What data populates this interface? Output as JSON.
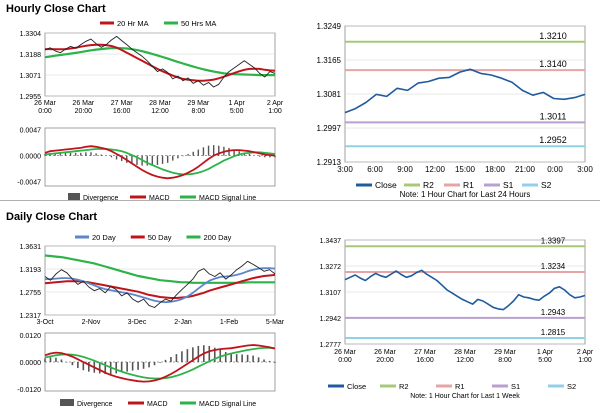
{
  "colors": {
    "price": "#1f5b9e",
    "ma20": "#c0141b",
    "ma50": "#2db34a",
    "ma200": "#2db34a",
    "daily_ma20": "#5b86c8",
    "macd": "#c0141b",
    "signal": "#2db34a",
    "divergence": "#555555",
    "r2": "#a8c878",
    "r1": "#e8a4a4",
    "s1": "#b8a0d0",
    "s2": "#90d0e8",
    "grid": "#d0d0d0"
  },
  "sections": {
    "hourly_title": "Hourly Close Chart",
    "daily_title": "Daily Close Chart"
  },
  "chart_data": [
    {
      "id": "hourly-price",
      "type": "line",
      "x_labels": [
        "26 Mar\n0:00",
        "26 Mar\n20:00",
        "27 Mar\n16:00",
        "28 Mar\n12:00",
        "29 Mar\n8:00",
        "1 Apr\n5:00",
        "2 Apr\n1:00"
      ],
      "y_ticks": [
        "1.3304",
        "1.3188",
        "1.3071",
        "1.2955"
      ],
      "ylim": [
        1.2955,
        1.3304
      ],
      "legend": [
        "20 Hr MA",
        "50 Hrs MA"
      ],
      "series": [
        {
          "role": "price",
          "values": [
            1.321,
            1.3222,
            1.3205,
            1.3195,
            1.3215,
            1.323,
            1.322,
            1.324,
            1.3258,
            1.327,
            1.3245,
            1.3225,
            1.324,
            1.3265,
            1.3285,
            1.3262,
            1.324,
            1.3215,
            1.3195,
            1.3175,
            1.315,
            1.312,
            1.309,
            1.3105,
            1.3085,
            1.305,
            1.3065,
            1.304,
            1.3055,
            1.3025,
            1.304,
            1.3015,
            1.303,
            1.3005,
            1.302,
            1.306,
            1.309,
            1.311,
            1.313,
            1.315,
            1.313,
            1.311,
            1.308,
            1.306,
            1.309,
            1.308
          ]
        },
        {
          "name": "20 Hr MA",
          "values": [
            1.3215,
            1.3215,
            1.3214,
            1.3214,
            1.3215,
            1.3218,
            1.3222,
            1.3228,
            1.3233,
            1.3237,
            1.3239,
            1.3239,
            1.3237,
            1.3232,
            1.3223,
            1.321,
            1.3195,
            1.318,
            1.3165,
            1.315,
            1.3135,
            1.312,
            1.3105,
            1.3092,
            1.308,
            1.3068,
            1.3058,
            1.305,
            1.3045,
            1.3042,
            1.304,
            1.304,
            1.3042,
            1.3046,
            1.3053,
            1.3062,
            1.3072,
            1.3082,
            1.3092,
            1.31,
            1.3105,
            1.3106,
            1.3105,
            1.31,
            1.3097,
            1.3095
          ]
        },
        {
          "name": "50 Hrs MA",
          "values": [
            1.317,
            1.3174,
            1.3178,
            1.3182,
            1.3186,
            1.319,
            1.3194,
            1.3198,
            1.3203,
            1.3208,
            1.3212,
            1.3215,
            1.3218,
            1.322,
            1.3221,
            1.322,
            1.3218,
            1.3214,
            1.3209,
            1.3203,
            1.3196,
            1.3188,
            1.318,
            1.3171,
            1.3162,
            1.3153,
            1.3144,
            1.3135,
            1.3126,
            1.3118,
            1.311,
            1.3103,
            1.3096,
            1.309,
            1.3085,
            1.3081,
            1.3078,
            1.3076,
            1.3075,
            1.3074,
            1.3073,
            1.3072,
            1.3071,
            1.3071,
            1.3071,
            1.3071
          ]
        }
      ]
    },
    {
      "id": "hourly-macd",
      "type": "line",
      "y_ticks": [
        "0.0047",
        "0.0000",
        "-0.0047"
      ],
      "ylim": [
        -0.0055,
        0.005
      ],
      "legend": [
        "Divergence",
        "MACD",
        "MACD Signal Line"
      ],
      "series": [
        {
          "name": "MACD",
          "values": [
            0.0005,
            0.0008,
            0.0009,
            0.001,
            0.0011,
            0.0012,
            0.0013,
            0.0014,
            0.0016,
            0.0017,
            0.0016,
            0.0014,
            0.0012,
            0.0008,
            0.0003,
            -0.0002,
            -0.0008,
            -0.0014,
            -0.002,
            -0.0026,
            -0.0031,
            -0.0035,
            -0.0038,
            -0.004,
            -0.0041,
            -0.004,
            -0.0038,
            -0.0035,
            -0.0031,
            -0.0026,
            -0.002,
            -0.0013,
            -0.0006,
            0.0,
            0.0004,
            0.0007,
            0.0009,
            0.001,
            0.001,
            0.0009,
            0.0008,
            0.0006,
            0.0004,
            0.0002,
            0.0001,
            0.0
          ]
        },
        {
          "name": "MACD Signal Line",
          "values": [
            0.0002,
            0.0003,
            0.0004,
            0.0005,
            0.0006,
            0.0007,
            0.0008,
            0.0009,
            0.001,
            0.0011,
            0.0012,
            0.0012,
            0.0012,
            0.0011,
            0.001,
            0.0008,
            0.0005,
            0.0001,
            -0.0003,
            -0.0008,
            -0.0013,
            -0.0017,
            -0.0021,
            -0.0025,
            -0.0028,
            -0.0031,
            -0.0033,
            -0.0034,
            -0.0034,
            -0.0033,
            -0.0031,
            -0.0028,
            -0.0024,
            -0.0019,
            -0.0014,
            -0.0009,
            -0.0005,
            -0.0001,
            0.0002,
            0.0004,
            0.0005,
            0.0006,
            0.0006,
            0.0005,
            0.0004,
            0.0003
          ]
        }
      ]
    },
    {
      "id": "hourly-pivot",
      "type": "line",
      "x_labels": [
        "3:00",
        "6:00",
        "9:00",
        "12:00",
        "15:00",
        "18:00",
        "21:00",
        "0:00",
        "3:00"
      ],
      "y_ticks": [
        "1.3249",
        "1.3165",
        "1.3081",
        "1.2997",
        "1.2913"
      ],
      "ylim": [
        1.2913,
        1.3249
      ],
      "levels": {
        "R2": 1.321,
        "R1": 1.314,
        "S1": 1.3011,
        "S2": 1.2952
      },
      "level_labels": {
        "R2": "1.3210",
        "R1": "1.3140",
        "S1": "1.3011",
        "S2": "1.2952"
      },
      "legend": [
        "Close",
        "R2",
        "R1",
        "S1",
        "S2"
      ],
      "note": "Note: 1 Hour Chart for Last 24 Hours",
      "series": [
        {
          "name": "Close",
          "values": [
            1.3035,
            1.3045,
            1.306,
            1.308,
            1.3075,
            1.3095,
            1.309,
            1.3108,
            1.3112,
            1.312,
            1.3122,
            1.3135,
            1.3142,
            1.3132,
            1.3128,
            1.312,
            1.311,
            1.309,
            1.3078,
            1.3085,
            1.307,
            1.3068,
            1.3072,
            1.308
          ]
        }
      ]
    },
    {
      "id": "daily-price",
      "type": "line",
      "x_labels": [
        "3-Oct",
        "2-Nov",
        "3-Dec",
        "2-Jan",
        "1-Feb",
        "5-Mar"
      ],
      "y_ticks": [
        "1.3631",
        "1.3193",
        "1.2755",
        "1.2317"
      ],
      "ylim": [
        1.2317,
        1.3631
      ],
      "legend": [
        "20 Day",
        "50 Day",
        "200 Day"
      ],
      "series": [
        {
          "role": "price",
          "values": [
            1.305,
            1.298,
            1.31,
            1.318,
            1.312,
            1.3,
            1.29,
            1.296,
            1.285,
            1.278,
            1.282,
            1.274,
            1.286,
            1.28,
            1.268,
            1.274,
            1.262,
            1.256,
            1.262,
            1.25,
            1.246,
            1.255,
            1.262,
            1.258,
            1.27,
            1.28,
            1.29,
            1.3,
            1.315,
            1.32,
            1.31,
            1.305,
            1.312,
            1.3,
            1.308,
            1.318,
            1.325,
            1.334,
            1.328,
            1.322,
            1.315,
            1.318,
            1.31
          ]
        },
        {
          "name": "20 Day",
          "values": [
            1.3,
            1.3,
            1.301,
            1.302,
            1.302,
            1.301,
            1.299,
            1.296,
            1.292,
            1.288,
            1.284,
            1.281,
            1.279,
            1.277,
            1.275,
            1.273,
            1.271,
            1.268,
            1.265,
            1.262,
            1.259,
            1.257,
            1.256,
            1.257,
            1.259,
            1.262,
            1.267,
            1.274,
            1.282,
            1.29,
            1.297,
            1.301,
            1.304,
            1.305,
            1.306,
            1.308,
            1.311,
            1.315,
            1.318,
            1.32,
            1.321,
            1.321,
            1.32
          ]
        },
        {
          "name": "50 Day",
          "values": [
            1.292,
            1.293,
            1.294,
            1.295,
            1.296,
            1.296,
            1.296,
            1.295,
            1.294,
            1.292,
            1.29,
            1.288,
            1.286,
            1.284,
            1.282,
            1.28,
            1.278,
            1.276,
            1.273,
            1.27,
            1.268,
            1.266,
            1.265,
            1.264,
            1.264,
            1.265,
            1.266,
            1.268,
            1.271,
            1.274,
            1.278,
            1.281,
            1.284,
            1.287,
            1.29,
            1.293,
            1.296,
            1.299,
            1.302,
            1.304,
            1.306,
            1.307,
            1.308
          ]
        },
        {
          "name": "200 Day",
          "values": [
            1.345,
            1.344,
            1.343,
            1.342,
            1.34,
            1.338,
            1.336,
            1.334,
            1.332,
            1.33,
            1.327,
            1.324,
            1.321,
            1.318,
            1.315,
            1.312,
            1.309,
            1.306,
            1.304,
            1.302,
            1.3,
            1.298,
            1.297,
            1.296,
            1.295,
            1.294,
            1.294,
            1.293,
            1.293,
            1.293,
            1.293,
            1.293,
            1.293,
            1.293,
            1.293,
            1.293,
            1.293,
            1.294,
            1.294,
            1.294,
            1.294,
            1.294,
            1.294
          ]
        }
      ]
    },
    {
      "id": "daily-macd",
      "type": "line",
      "y_ticks": [
        "0.0120",
        "0.0000",
        "-0.0120"
      ],
      "ylim": [
        -0.013,
        0.013
      ],
      "legend": [
        "Divergence",
        "MACD",
        "MACD Signal Line"
      ],
      "series": [
        {
          "name": "MACD",
          "values": [
            0.003,
            0.0038,
            0.0042,
            0.004,
            0.0033,
            0.0024,
            0.0012,
            0.0,
            -0.0012,
            -0.0024,
            -0.0036,
            -0.0048,
            -0.0058,
            -0.0066,
            -0.0072,
            -0.0078,
            -0.0082,
            -0.0086,
            -0.0088,
            -0.0087,
            -0.0083,
            -0.0076,
            -0.0066,
            -0.0054,
            -0.004,
            -0.0024,
            -0.0008,
            0.0008,
            0.0024,
            0.0038,
            0.0048,
            0.0054,
            0.0058,
            0.006,
            0.0062,
            0.0066,
            0.007,
            0.0074,
            0.0076,
            0.0074,
            0.007,
            0.0066,
            0.006
          ]
        },
        {
          "name": "MACD Signal Line",
          "values": [
            0.002,
            0.0025,
            0.003,
            0.0033,
            0.0034,
            0.0033,
            0.0029,
            0.0023,
            0.0015,
            0.0006,
            -0.0004,
            -0.0014,
            -0.0024,
            -0.0034,
            -0.0043,
            -0.0051,
            -0.0058,
            -0.0064,
            -0.0069,
            -0.0072,
            -0.0074,
            -0.0074,
            -0.0072,
            -0.0068,
            -0.0062,
            -0.0054,
            -0.0044,
            -0.0033,
            -0.0021,
            -0.0009,
            0.0003,
            0.0014,
            0.0024,
            0.0032,
            0.0038,
            0.0044,
            0.0049,
            0.0054,
            0.0058,
            0.0061,
            0.0063,
            0.0063,
            0.0062
          ]
        }
      ]
    },
    {
      "id": "daily-pivot",
      "type": "line",
      "x_labels": [
        "26 Mar\n0:00",
        "26 Mar\n20:00",
        "27 Mar\n16:00",
        "28 Mar\n12:00",
        "29 Mar\n8:00",
        "1 Apr\n5:00",
        "2 Apr\n1:00"
      ],
      "y_ticks": [
        "1.3437",
        "1.3272",
        "1.3107",
        "1.2942",
        "1.2777"
      ],
      "ylim": [
        1.2777,
        1.3437
      ],
      "levels": {
        "R2": 1.3397,
        "R1": 1.3234,
        "S1": 1.2943,
        "S2": 1.2815
      },
      "level_labels": {
        "R2": "1.3397",
        "R1": "1.3234",
        "S1": "1.2943",
        "S2": "1.2815"
      },
      "legend": [
        "Close",
        "R2",
        "R1",
        "S1",
        "S2"
      ],
      "note": "Note: 1 Hour Chart for Last 1 Week",
      "series": [
        {
          "name": "Close",
          "values": [
            1.3185,
            1.32,
            1.3215,
            1.3195,
            1.318,
            1.3205,
            1.3225,
            1.321,
            1.32,
            1.322,
            1.324,
            1.3218,
            1.32,
            1.321,
            1.323,
            1.3245,
            1.322,
            1.32,
            1.318,
            1.315,
            1.312,
            1.31,
            1.308,
            1.306,
            1.3045,
            1.303,
            1.306,
            1.305,
            1.303,
            1.301,
            1.3,
            1.2995,
            1.302,
            1.305,
            1.309,
            1.3075,
            1.307,
            1.306,
            1.3055,
            1.308,
            1.31,
            1.313,
            1.314,
            1.312,
            1.309,
            1.307,
            1.3075,
            1.3085
          ]
        }
      ]
    }
  ]
}
